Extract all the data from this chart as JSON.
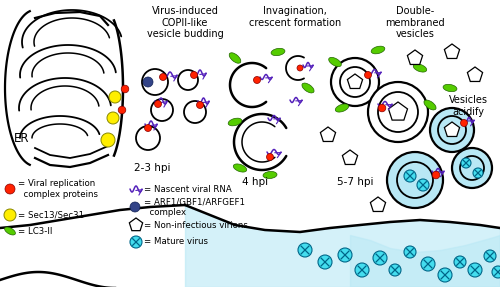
{
  "title_col1": "Virus-induced\nCOPII-like\nvesicle budding",
  "title_col2": "Invagination,\ncrescent formation",
  "title_col3": "Double-\nmembraned\nvesicles",
  "label_er": "ER",
  "label_2_3": "2-3 hpi",
  "label_4": "4 hpi",
  "label_5_7": "5-7 hpi",
  "label_acidify": "Vesicles\nacidify",
  "legend_red": "= Viral replication\n  complex proteins",
  "legend_yellow": "= Sec13/Sec31",
  "legend_green": "= LC3-II",
  "legend_rna": "= Nascent viral RNA",
  "legend_blue": "= ARF1/GBF1/ARFGEF1\n  complex",
  "legend_pentagon": "= Non-infectious virions",
  "legend_cyan": "= Mature virus",
  "bg_color": "#ffffff",
  "line_color": "#000000",
  "red_color": "#ff2200",
  "yellow_color": "#ffee00",
  "green_color": "#55cc00",
  "blue_dark_color": "#334488",
  "cyan_color": "#44ddee",
  "purple_color": "#5522bb",
  "light_blue_fill": "#b8e8f5"
}
